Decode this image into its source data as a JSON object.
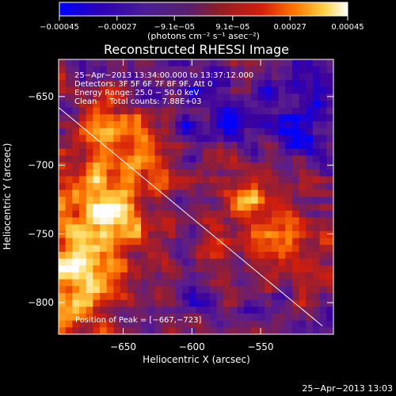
{
  "chart_data": {
    "type": "heatmap",
    "title": "Reconstructed RHESSI Image",
    "xlabel": "Heliocentric X (arcsec)",
    "ylabel": "Heliocentric Y (arcsec)",
    "xlim": [
      -697,
      -497
    ],
    "ylim": [
      -823,
      -623
    ],
    "xticks": [
      -650,
      -600,
      -550
    ],
    "yticks": [
      -650,
      -700,
      -750,
      -800
    ],
    "xtick_labels": [
      "−650",
      "−600",
      "−550"
    ],
    "ytick_labels": [
      "−650",
      "−700",
      "−750",
      "−800"
    ],
    "colorbar": {
      "range": [
        -0.00045,
        0.00045
      ],
      "ticks": [
        -0.00045,
        -0.00027,
        -9.1e-05,
        9.1e-05,
        0.00027,
        0.00045
      ],
      "tick_labels": [
        "−0.00045",
        "−0.00027",
        "−9.1e−05",
        "9.1e−05",
        "0.00027",
        "0.00045"
      ],
      "colors": [
        "#0000ff",
        "#3a00a0",
        "#5a1e8c",
        "#8c1e3c",
        "#d21e0a",
        "#ff7800",
        "#ffd24b",
        "#ffffff"
      ]
    },
    "units_label": "(photons cm⁻² s⁻¹ asec⁻²)",
    "annotations": {
      "time": "25−Apr−2013 13:34:00.000 to 13:37:12.000",
      "detectors": "Detectors: 3F 5F 6F 7F 8F 9F, Att 0",
      "energy": "Energy Range: 25.0 − 50.0 keV",
      "clean": "Clean     Total counts: 7.88E+03",
      "peak": "Position of Peak = [−667,−723]"
    },
    "limb_line": {
      "x": [
        -697,
        -505
      ],
      "y": [
        -658,
        -817
      ]
    },
    "peak_position": [
      -667,
      -723
    ],
    "grid": false
  },
  "footer": {
    "timestamp": "25−Apr−2013 13:03"
  }
}
